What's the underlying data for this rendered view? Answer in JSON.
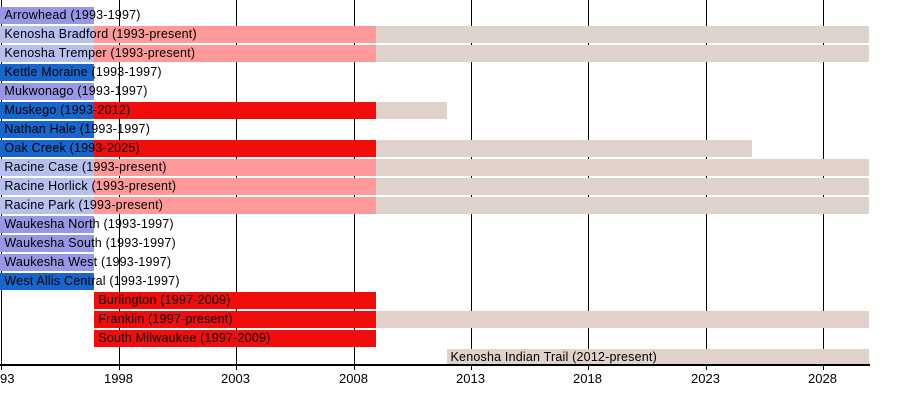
{
  "chart_data": {
    "type": "bar",
    "subtype": "horizontal-timeline-gantt",
    "title": "",
    "xlabel": "",
    "ylabel": "",
    "x_axis": {
      "unit": "year",
      "range": [
        1993,
        2030
      ],
      "grid": true,
      "ticks": [
        {
          "year": 1993,
          "label": "93",
          "align": "left"
        },
        {
          "year": 1998,
          "label": "1998"
        },
        {
          "year": 2003,
          "label": "2003"
        },
        {
          "year": 2008,
          "label": "2008"
        },
        {
          "year": 2013,
          "label": "2013"
        },
        {
          "year": 2018,
          "label": "2018"
        },
        {
          "year": 2023,
          "label": "2023"
        },
        {
          "year": 2028,
          "label": "2028"
        }
      ]
    },
    "palette": {
      "blue": "#1766CE",
      "purple": "#9897E6",
      "periwinkle": "#B5C0EE",
      "pink": "#FF9999",
      "red": "#F20D0D",
      "tan": "#E0D2CA",
      "axis": "#000000",
      "text": "#000000",
      "background": "#FFFFFF"
    },
    "rows": [
      {
        "label": "Arrowhead (1993-1997)",
        "segments": [
          {
            "from": 1993,
            "to": 1997,
            "color": "purple"
          }
        ]
      },
      {
        "label": "Kenosha Bradford (1993-present)",
        "segments": [
          {
            "from": 1993,
            "to": 1997,
            "color": "periwinkle"
          },
          {
            "from": 1997,
            "to": 2009,
            "color": "pink"
          },
          {
            "from": 2009,
            "to": 2030,
            "color": "tan"
          }
        ]
      },
      {
        "label": "Kenosha Tremper (1993-present)",
        "segments": [
          {
            "from": 1993,
            "to": 1997,
            "color": "periwinkle"
          },
          {
            "from": 1997,
            "to": 2009,
            "color": "pink"
          },
          {
            "from": 2009,
            "to": 2030,
            "color": "tan"
          }
        ]
      },
      {
        "label": "Kettle Moraine (1993-1997)",
        "segments": [
          {
            "from": 1993,
            "to": 1997,
            "color": "blue"
          }
        ]
      },
      {
        "label": "Mukwonago (1993-1997)",
        "segments": [
          {
            "from": 1993,
            "to": 1997,
            "color": "purple"
          }
        ]
      },
      {
        "label": "Muskego (1993-2012)",
        "segments": [
          {
            "from": 1993,
            "to": 1997,
            "color": "blue"
          },
          {
            "from": 1997,
            "to": 2009,
            "color": "red"
          },
          {
            "from": 2009,
            "to": 2012,
            "color": "tan"
          }
        ]
      },
      {
        "label": "Nathan Hale (1993-1997)",
        "segments": [
          {
            "from": 1993,
            "to": 1997,
            "color": "blue"
          }
        ]
      },
      {
        "label": "Oak Creek (1993-2025)",
        "segments": [
          {
            "from": 1993,
            "to": 1997,
            "color": "blue"
          },
          {
            "from": 1997,
            "to": 2009,
            "color": "red"
          },
          {
            "from": 2009,
            "to": 2025,
            "color": "tan"
          }
        ]
      },
      {
        "label": "Racine Case (1993-present)",
        "segments": [
          {
            "from": 1993,
            "to": 1997,
            "color": "periwinkle"
          },
          {
            "from": 1997,
            "to": 2009,
            "color": "pink"
          },
          {
            "from": 2009,
            "to": 2030,
            "color": "tan"
          }
        ]
      },
      {
        "label": "Racine Horlick (1993-present)",
        "segments": [
          {
            "from": 1993,
            "to": 1997,
            "color": "periwinkle"
          },
          {
            "from": 1997,
            "to": 2009,
            "color": "pink"
          },
          {
            "from": 2009,
            "to": 2030,
            "color": "tan"
          }
        ]
      },
      {
        "label": "Racine Park (1993-present)",
        "segments": [
          {
            "from": 1993,
            "to": 1997,
            "color": "periwinkle"
          },
          {
            "from": 1997,
            "to": 2009,
            "color": "pink"
          },
          {
            "from": 2009,
            "to": 2030,
            "color": "tan"
          }
        ]
      },
      {
        "label": "Waukesha North (1993-1997)",
        "segments": [
          {
            "from": 1993,
            "to": 1997,
            "color": "purple"
          }
        ]
      },
      {
        "label": "Waukesha South (1993-1997)",
        "segments": [
          {
            "from": 1993,
            "to": 1997,
            "color": "purple"
          }
        ]
      },
      {
        "label": "Waukesha West (1993-1997)",
        "segments": [
          {
            "from": 1993,
            "to": 1997,
            "color": "purple"
          }
        ]
      },
      {
        "label": "West Allis Central (1993-1997)",
        "segments": [
          {
            "from": 1993,
            "to": 1997,
            "color": "blue"
          }
        ]
      },
      {
        "label": "Burlington (1997-2009)",
        "segments": [
          {
            "from": 1997,
            "to": 2009,
            "color": "red"
          }
        ]
      },
      {
        "label": "Franklin (1997-present)",
        "segments": [
          {
            "from": 1997,
            "to": 2009,
            "color": "red"
          },
          {
            "from": 2009,
            "to": 2030,
            "color": "tan"
          }
        ]
      },
      {
        "label": "South Milwaukee (1997-2009)",
        "segments": [
          {
            "from": 1997,
            "to": 2009,
            "color": "red"
          }
        ]
      },
      {
        "label": "Kenosha Indian Trail (2012-present)",
        "segments": [
          {
            "from": 2012,
            "to": 2030,
            "color": "tan"
          }
        ]
      }
    ]
  }
}
